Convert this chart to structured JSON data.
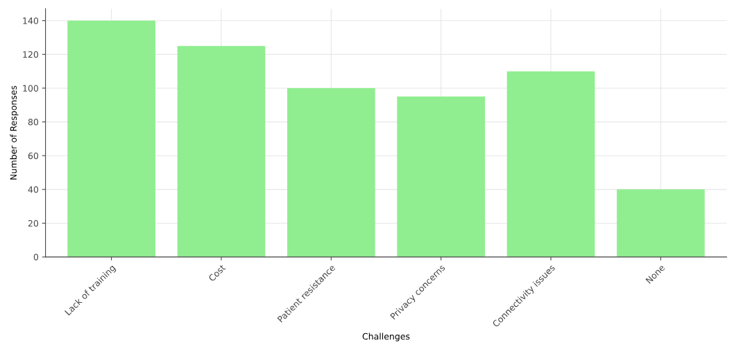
{
  "chart_data": {
    "type": "bar",
    "xlabel": "Challenges",
    "ylabel": "Number of Responses",
    "categories": [
      "Lack of training",
      "Cost",
      "Patient resistance",
      "Privacy concerns",
      "Connectivity issues",
      "None"
    ],
    "values": [
      140,
      125,
      100,
      95,
      110,
      40
    ],
    "color": "#90ee90",
    "ylim": [
      0,
      147
    ],
    "yticks": [
      0,
      20,
      40,
      60,
      80,
      100,
      120,
      140
    ],
    "grid": true
  }
}
